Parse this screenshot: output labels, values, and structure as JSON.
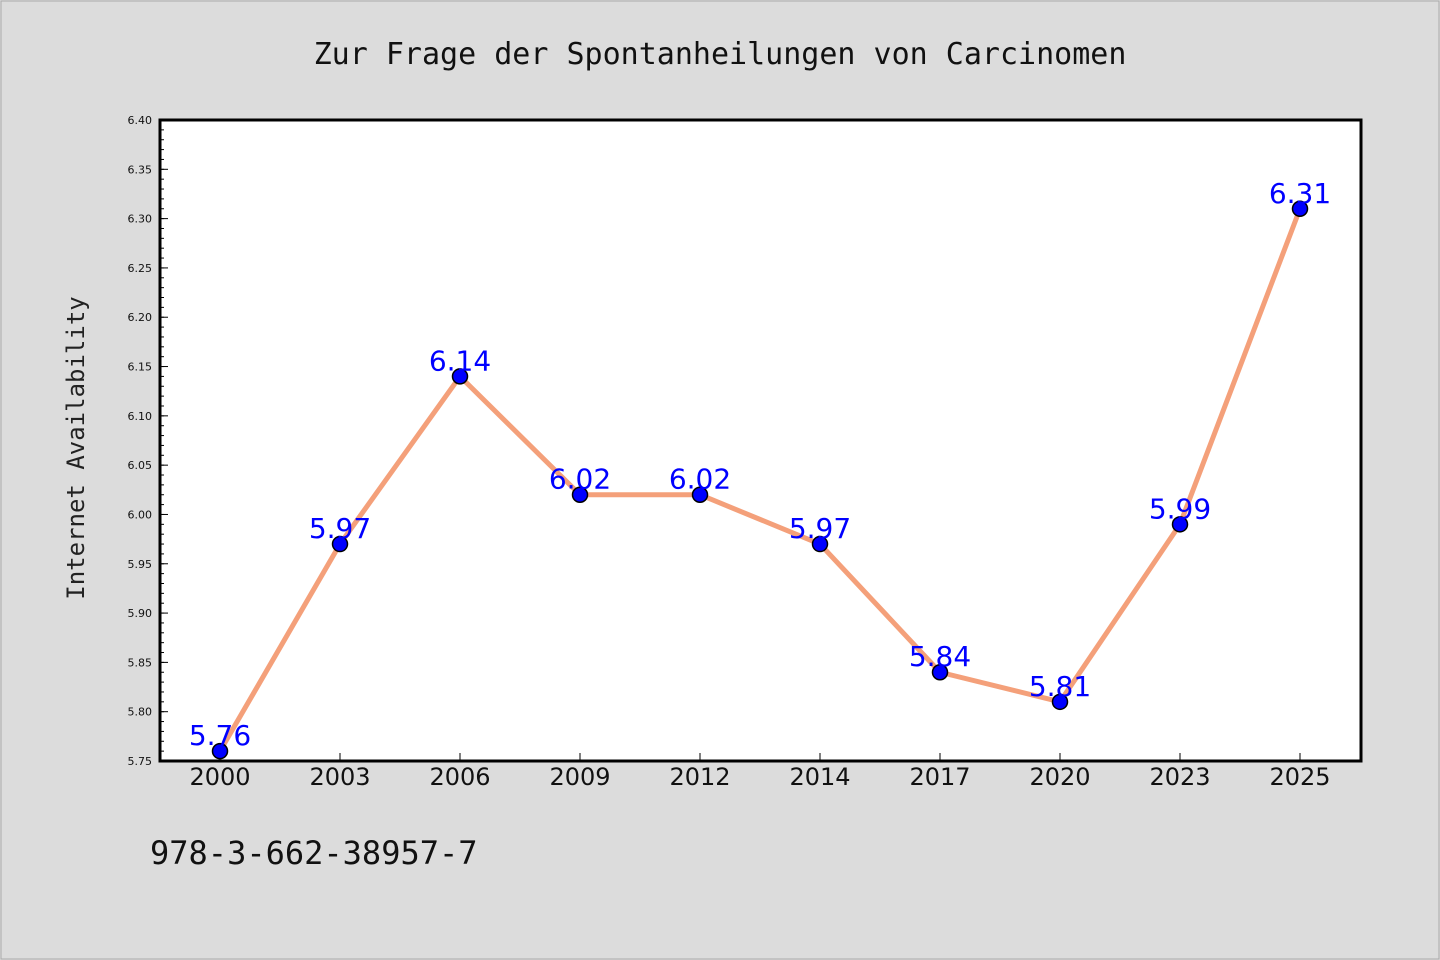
{
  "chart_data": {
    "type": "line",
    "title": "Zur Frage der Spontanheilungen von Carcinomen",
    "xlabel": "",
    "ylabel": "Internet Availability",
    "categories": [
      "2000",
      "2003",
      "2006",
      "2009",
      "2012",
      "2014",
      "2017",
      "2020",
      "2023",
      "2025"
    ],
    "series": [
      {
        "values": [
          5.76,
          5.97,
          6.14,
          6.02,
          6.02,
          5.97,
          5.84,
          5.81,
          5.99,
          6.31
        ],
        "labels": [
          "5.76",
          "5.97",
          "6.14",
          "6.02",
          "6.02",
          "5.97",
          "5.84",
          "5.81",
          "5.99",
          "6.31"
        ]
      }
    ],
    "ylim": [
      5.75,
      6.4
    ],
    "yticks": [
      "5.75",
      "5.80",
      "5.85",
      "5.90",
      "5.95",
      "6.00",
      "6.05",
      "6.10",
      "6.15",
      "6.20",
      "6.25",
      "6.30",
      "6.35",
      "6.40"
    ],
    "grid": false,
    "legend": "none",
    "colors": {
      "line": "#f4a07a",
      "marker": "#0000ff",
      "label": "#0000ff",
      "background": "#dcdcdc",
      "plot_background": "#ffffff"
    }
  },
  "footer": {
    "isbn": "978-3-662-38957-7"
  }
}
